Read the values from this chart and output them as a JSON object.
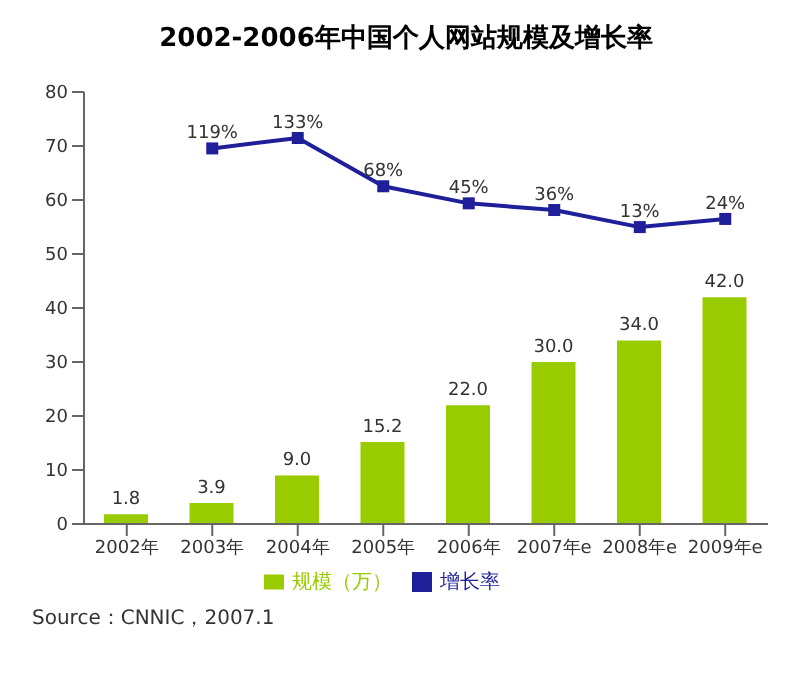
{
  "chart_data": {
    "type": "bar",
    "title": "2002-2006年中国个人网站规模及增长率",
    "categories": [
      "2002年",
      "2003年",
      "2004年",
      "2005年",
      "2006年",
      "2007年e",
      "2008年e",
      "2009年e"
    ],
    "series": [
      {
        "name": "规模（万）",
        "color": "#99cc00",
        "values": [
          1.8,
          3.9,
          9.0,
          15.2,
          22.0,
          30.0,
          34.0,
          42.0
        ],
        "value_labels": [
          "1.8",
          "3.9",
          "9.0",
          "15.2",
          "22.0",
          "30.0",
          "34.0",
          "42.0"
        ]
      },
      {
        "name": "增长率",
        "type": "line",
        "axis": "y2",
        "color": "#1f1f99",
        "marker": "square",
        "values": [
          null,
          119,
          133,
          68,
          45,
          36,
          13,
          24
        ],
        "value_labels": [
          null,
          "119%",
          "133%",
          "68%",
          "45%",
          "36%",
          "13%",
          "24%"
        ]
      }
    ],
    "ylim": [
      0,
      80
    ],
    "yticks": [
      0,
      10,
      20,
      30,
      40,
      50,
      60,
      70,
      80
    ],
    "y2lim": [
      -387,
      195
    ],
    "legend": "bottom",
    "annotations": [
      "Source：CNNIC，2007.1"
    ]
  }
}
